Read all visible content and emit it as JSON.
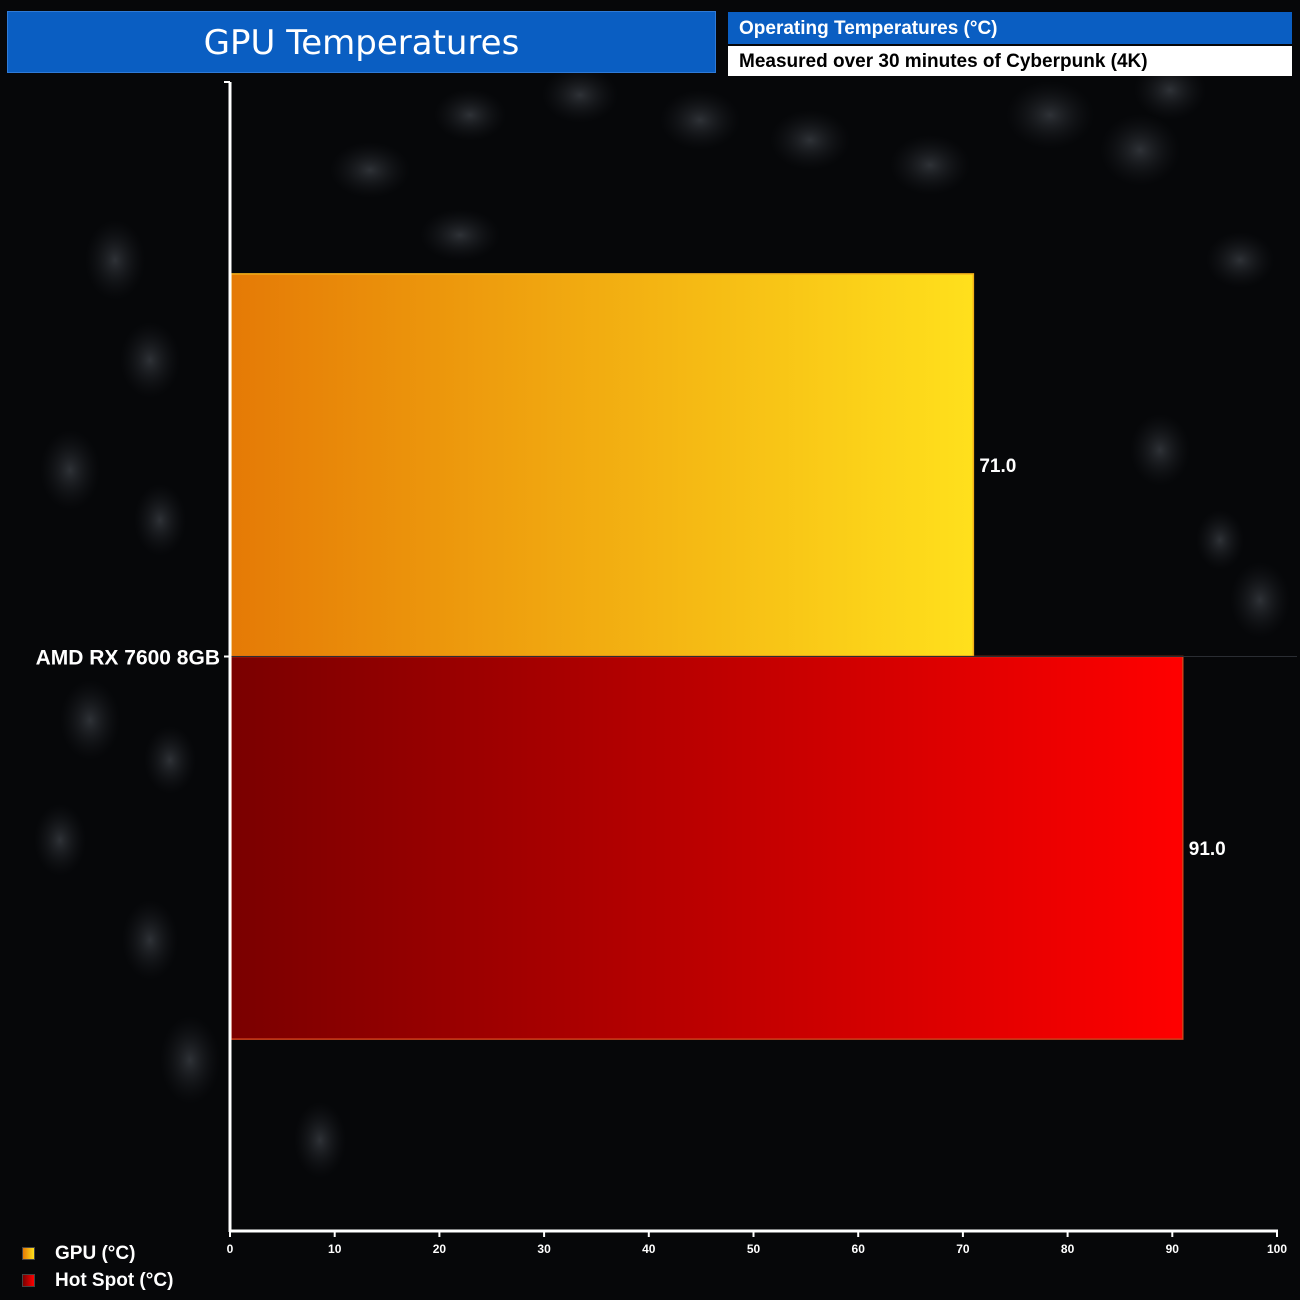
{
  "header": {
    "title": "GPU Temperatures",
    "subtitle_main": "Operating Temperatures (°C)",
    "subtitle_detail": "Measured over 30 minutes of Cyberpunk (4K)"
  },
  "chart_data": {
    "type": "bar",
    "orientation": "horizontal",
    "categories": [
      "AMD RX 7600 8GB"
    ],
    "series": [
      {
        "name": "GPU (°C)",
        "values": [
          71.0
        ],
        "color_start": "#e57a06",
        "color_end": "#ffe01c"
      },
      {
        "name": "Hot Spot (°C)",
        "values": [
          91.0
        ],
        "color_start": "#7a0000",
        "color_end": "#ff0000"
      }
    ],
    "data_labels": [
      "71.0",
      "91.0"
    ],
    "xlim": [
      0,
      100
    ],
    "x_ticks": [
      0,
      10,
      20,
      30,
      40,
      50,
      60,
      70,
      80,
      90,
      100
    ],
    "legend_position": "bottom-left",
    "grid": false
  }
}
